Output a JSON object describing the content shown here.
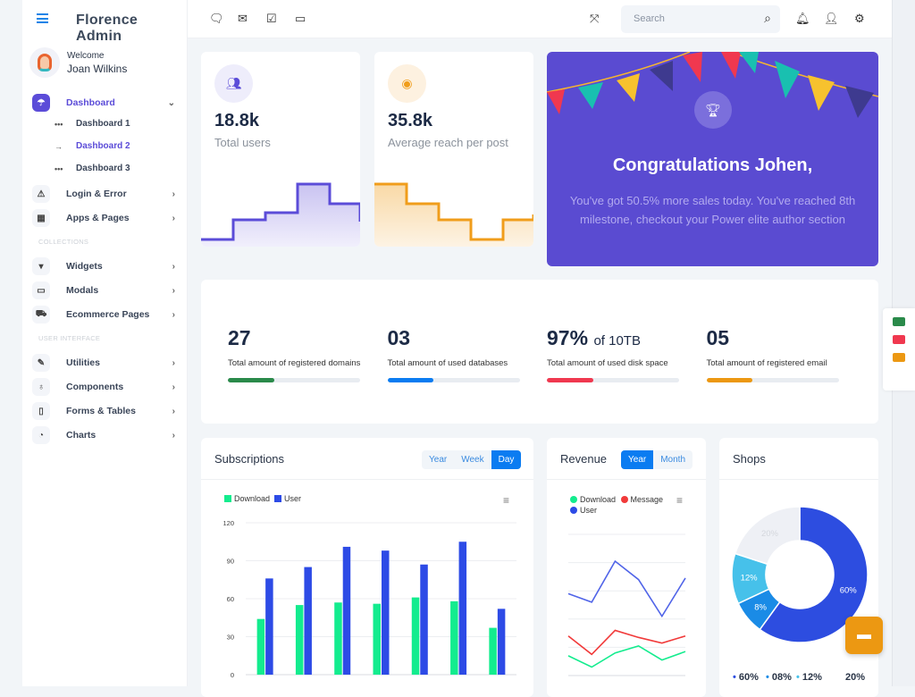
{
  "app": {
    "title": "Florence Admin"
  },
  "user": {
    "greeting": "Welcome",
    "name": "Joan Wilkins"
  },
  "sidebar": {
    "items": [
      {
        "label": "Dashboard",
        "icon": "gauge-icon",
        "active": true
      },
      {
        "label": "Login & Error",
        "icon": "warning-icon"
      },
      {
        "label": "Apps & Pages",
        "icon": "grid-icon"
      },
      {
        "label": "Widgets",
        "icon": "widget-icon"
      },
      {
        "label": "Modals",
        "icon": "modal-icon"
      },
      {
        "label": "Ecommerce Pages",
        "icon": "cart-icon"
      },
      {
        "label": "Utilities",
        "icon": "edit-icon"
      },
      {
        "label": "Components",
        "icon": "trophy-icon"
      },
      {
        "label": "Forms & Tables",
        "icon": "file-icon"
      },
      {
        "label": "Charts",
        "icon": "pie-icon"
      }
    ],
    "subitems": [
      "Dashboard 1",
      "Dashboard 2",
      "Dashboard 3"
    ],
    "sections": [
      "COLLECTIONS",
      "USER INTERFACE"
    ]
  },
  "header": {
    "search_placeholder": "Search"
  },
  "cards": [
    {
      "value": "18.8k",
      "label": "Total users",
      "color": "#5b4cd8"
    },
    {
      "value": "35.8k",
      "label": "Average reach per post",
      "color": "#f09d1b"
    }
  ],
  "banner": {
    "title": "Congratulations Johen,",
    "text": "You've got 50.5% more sales today. You've reached 8th milestone, checkout your Power elite author section"
  },
  "stats": [
    {
      "value": "27",
      "suffix": "",
      "label": "Total amount of registered domains",
      "progress": 35,
      "color": "#2a8a4a"
    },
    {
      "value": "03",
      "suffix": "",
      "label": "Total amount of used databases",
      "progress": 35,
      "color": "#0b7cf1"
    },
    {
      "value": "97%",
      "suffix": "of 10TB",
      "label": "Total amount of used disk space",
      "progress": 35,
      "color": "#f0384f"
    },
    {
      "value": "05",
      "suffix": "",
      "label": "Total amount of registered email",
      "progress": 35,
      "color": "#ec9812"
    }
  ],
  "subscriptions": {
    "title": "Subscriptions",
    "tabs": [
      "Year",
      "Week",
      "Day"
    ],
    "active": "Day"
  },
  "revenue": {
    "title": "Revenue",
    "tabs": [
      "Year",
      "Month"
    ],
    "active": "Year"
  },
  "shops": {
    "title": "Shops",
    "legend": [
      "60%",
      "08%",
      "12%",
      "20%"
    ]
  },
  "chart_data": [
    {
      "type": "bar",
      "title": "Subscriptions",
      "ylim": [
        0,
        120
      ],
      "yticks": [
        "0",
        "30",
        "60",
        "90",
        "120"
      ],
      "grid": true,
      "legend": "top-left",
      "series": [
        {
          "name": "Download",
          "color": "#13ec8e",
          "values": [
            44,
            55,
            57,
            56,
            61,
            58,
            37
          ]
        },
        {
          "name": "User",
          "color": "#2d4be6",
          "values": [
            76,
            85,
            101,
            98,
            87,
            105,
            52
          ]
        }
      ]
    },
    {
      "type": "line",
      "title": "Revenue",
      "ylim": [
        0,
        100
      ],
      "grid": true,
      "legend": "top-left",
      "series": [
        {
          "name": "Download",
          "color": "#13ec8e",
          "values": [
            14,
            6,
            16,
            21,
            11,
            17
          ]
        },
        {
          "name": "Message",
          "color": "#f13a3a",
          "values": [
            28,
            15,
            32,
            27,
            23,
            28
          ]
        },
        {
          "name": "User",
          "color": "#5064e8",
          "values": [
            58,
            52,
            81,
            68,
            42,
            69
          ]
        }
      ]
    },
    {
      "type": "pie",
      "title": "Shops",
      "donut": true,
      "slices": [
        {
          "value": 60,
          "label": "60%",
          "color": "#2d4de0"
        },
        {
          "value": 8,
          "label": "8%",
          "color": "#1a8be6"
        },
        {
          "value": 12,
          "label": "12%",
          "color": "#46c1ea"
        },
        {
          "value": 20,
          "label": "20%",
          "color": "#eef0f5"
        }
      ]
    }
  ]
}
